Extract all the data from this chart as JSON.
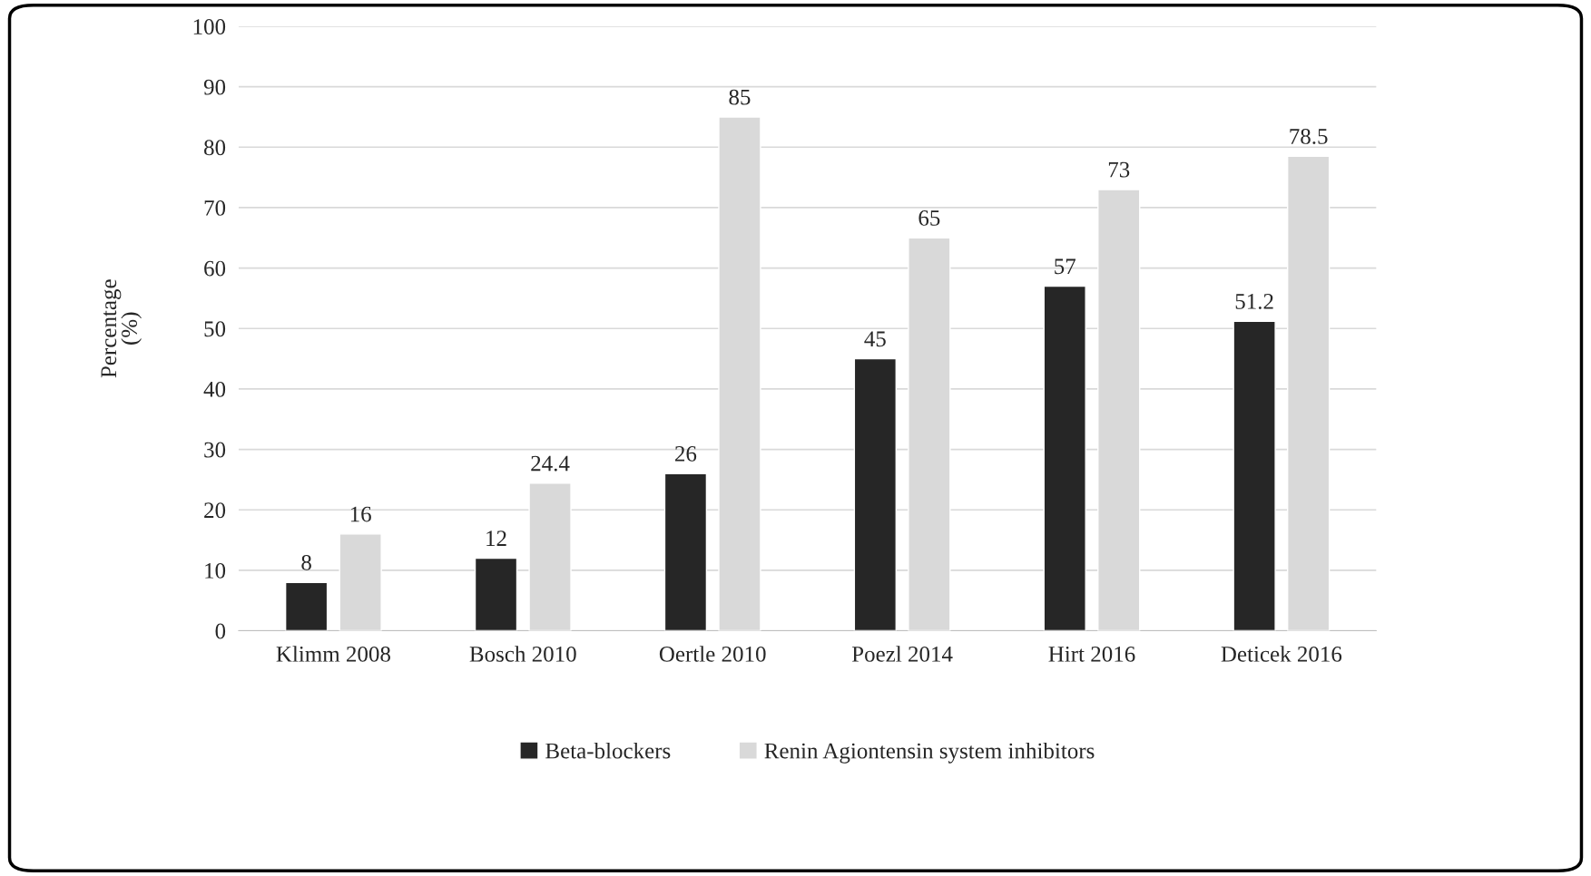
{
  "chart_data": {
    "type": "bar",
    "ylabel": "Percentage\n(%)",
    "categories": [
      "Klimm 2008",
      "Bosch 2010",
      "Oertle 2010",
      "Poezl 2014",
      "Hirt 2016",
      "Deticek 2016"
    ],
    "series": [
      {
        "name": "Beta-blockers",
        "color": "#262626",
        "values": [
          8,
          12,
          26,
          45,
          57,
          51.2
        ]
      },
      {
        "name": "Renin Agiontensin system inhibitors",
        "color": "#d9d9d9",
        "values": [
          16,
          24.4,
          85,
          65,
          73,
          78.5
        ]
      }
    ],
    "ylim": [
      0,
      100
    ],
    "yticks": [
      0,
      10,
      20,
      30,
      40,
      50,
      60,
      70,
      80,
      90,
      100
    ],
    "grid": "y",
    "legend": "bottom",
    "data_labels": true
  }
}
